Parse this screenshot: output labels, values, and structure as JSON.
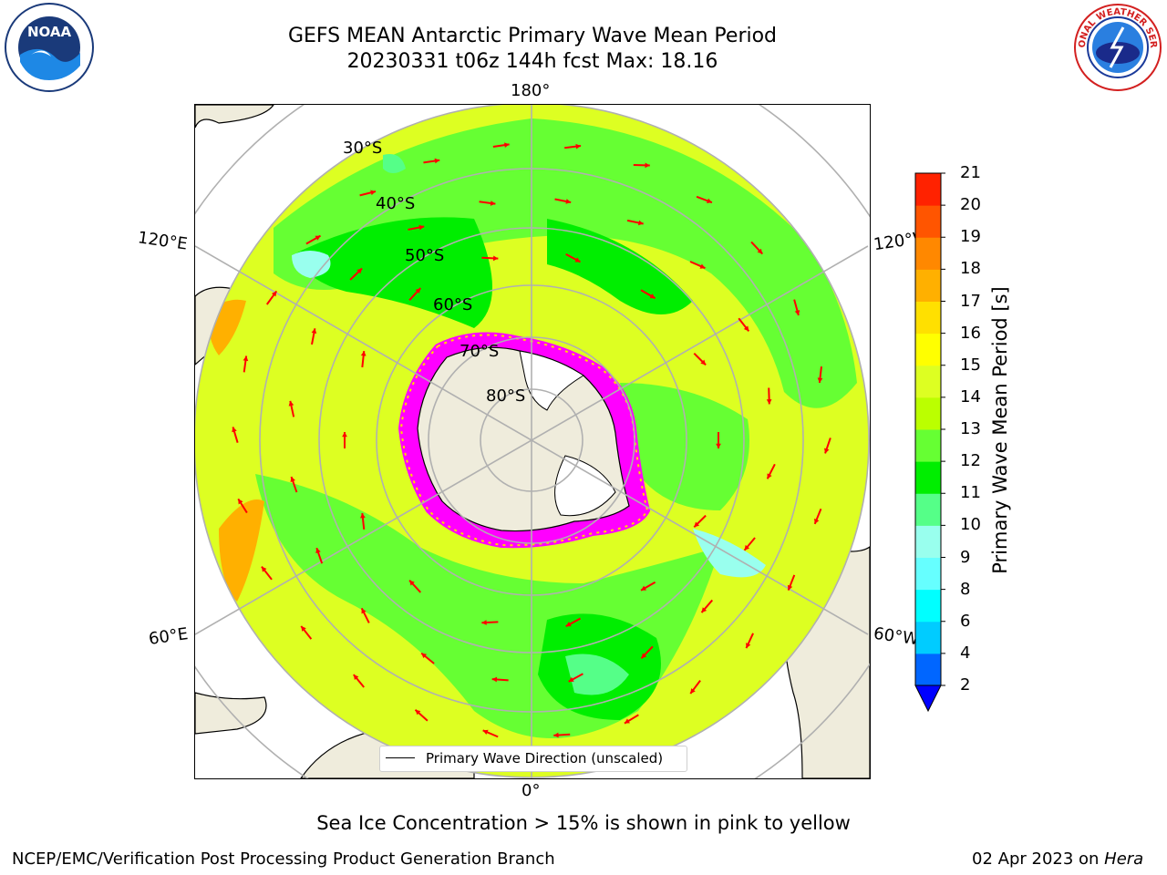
{
  "header": {
    "title_line1": "GEFS MEAN Antarctic Primary Wave Mean Period",
    "title_line2": "20230331 t06z 144h fcst   Max: 18.16"
  },
  "logos": {
    "left": {
      "text": "NOAA",
      "ring_text": "NATIONAL OCEANIC AND ATMOSPHERIC ADMINISTRATION · U.S. DEPARTMENT OF COMMERCE"
    },
    "right": {
      "ring_text": "NATIONAL WEATHER SERVICE"
    }
  },
  "map": {
    "longitude_labels": {
      "top": "180°",
      "bottom": "0°",
      "left_upper": "120°E",
      "left_lower": "60°E",
      "right_upper": "120°W",
      "right_lower": "60°W"
    },
    "latitude_labels": [
      "30°S",
      "40°S",
      "50°S",
      "60°S",
      "70°S",
      "80°S"
    ],
    "legend_label": "Primary Wave Direction (unscaled)",
    "arrow_color": "#ff0000",
    "land_color": "#efecdc",
    "ice_edge_colors": [
      "#ff00ff",
      "#ffd700"
    ]
  },
  "colorbar": {
    "label": "Primary Wave Mean Period [s]",
    "ticks": [
      "2",
      "4",
      "6",
      "8",
      "9",
      "10",
      "11",
      "12",
      "13",
      "14",
      "15",
      "16",
      "17",
      "18",
      "19",
      "20",
      "21"
    ],
    "colors": [
      "#0066ff",
      "#00ccff",
      "#00ffff",
      "#66ffff",
      "#99ffee",
      "#55ff88",
      "#00ee00",
      "#66ff33",
      "#bbff00",
      "#ddff22",
      "#ffff00",
      "#ffe000",
      "#ffb000",
      "#ff8800",
      "#ff5500",
      "#ff2200"
    ],
    "under_color": "#0000ff"
  },
  "footer": {
    "note": "Sea Ice Concentration > 15% is shown in pink to yellow",
    "credit": "NCEP/EMC/Verification Post Processing Product Generation Branch",
    "date": "02 Apr 2023 on ",
    "machine": "Hera"
  }
}
